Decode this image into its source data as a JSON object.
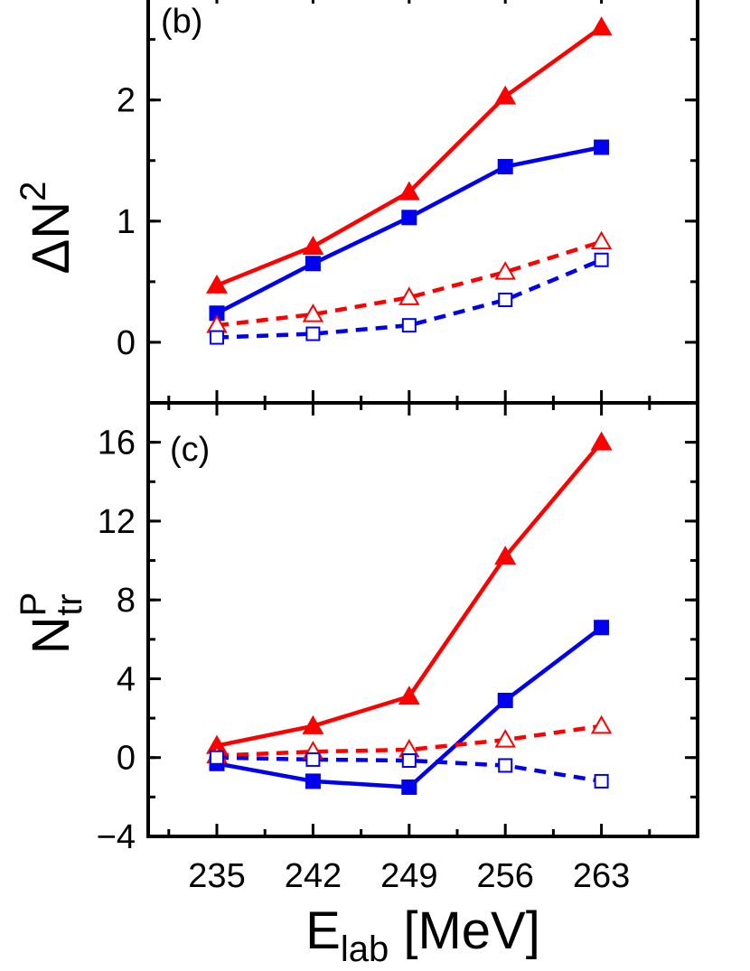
{
  "chart_data": [
    {
      "type": "line",
      "panel_label": "(b)",
      "ylabel": {
        "main": "ΔN",
        "sup": "2"
      },
      "xlabel": "",
      "x": [
        235,
        242,
        249,
        256,
        263
      ],
      "xlim": [
        230,
        270
      ],
      "ylim": [
        -0.5,
        2.9
      ],
      "yticks": [
        0,
        1,
        2
      ],
      "series": [
        {
          "values": [
            0.47,
            0.79,
            1.24,
            2.03,
            2.6
          ],
          "color": "#ff0000",
          "marker": "triangle",
          "filled": true,
          "dash": false
        },
        {
          "values": [
            0.24,
            0.65,
            1.03,
            1.45,
            1.61
          ],
          "color": "#0000ee",
          "marker": "square",
          "filled": true,
          "dash": false
        },
        {
          "values": [
            0.14,
            0.23,
            0.37,
            0.58,
            0.83
          ],
          "color": "#ff0000",
          "marker": "triangle",
          "filled": false,
          "dash": true
        },
        {
          "values": [
            0.04,
            0.07,
            0.14,
            0.35,
            0.68
          ],
          "color": "#0000ee",
          "marker": "square",
          "filled": false,
          "dash": true
        }
      ]
    },
    {
      "type": "line",
      "panel_label": "(c)",
      "ylabel": {
        "main": "N",
        "sup": "P",
        "sub": "tr"
      },
      "xlabel": {
        "main": "E",
        "sub": "lab",
        "tail": " [MeV]"
      },
      "x": [
        235,
        242,
        249,
        256,
        263
      ],
      "xlim": [
        230,
        270
      ],
      "ylim": [
        -4,
        18
      ],
      "yticks": [
        -4,
        0,
        4,
        8,
        12,
        16
      ],
      "ytick_labels": [
        "−4",
        "0",
        "4",
        "8",
        "12",
        "16"
      ],
      "xtick_labels": [
        "235",
        "242",
        "249",
        "256",
        "263"
      ],
      "series": [
        {
          "values": [
            0.6,
            1.6,
            3.1,
            10.2,
            16.0
          ],
          "color": "#ff0000",
          "marker": "triangle",
          "filled": true,
          "dash": false
        },
        {
          "values": [
            -0.3,
            -1.2,
            -1.5,
            2.9,
            6.6
          ],
          "color": "#0000ee",
          "marker": "square",
          "filled": true,
          "dash": false
        },
        {
          "values": [
            0.1,
            0.3,
            0.4,
            0.9,
            1.6
          ],
          "color": "#ff0000",
          "marker": "triangle",
          "filled": false,
          "dash": true
        },
        {
          "values": [
            0.0,
            -0.1,
            -0.15,
            -0.4,
            -1.2
          ],
          "color": "#0000ee",
          "marker": "square",
          "filled": false,
          "dash": true
        }
      ]
    }
  ]
}
